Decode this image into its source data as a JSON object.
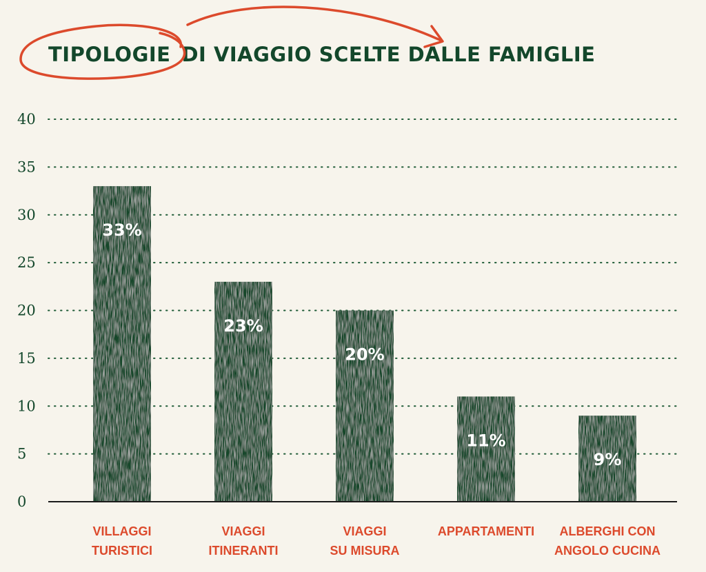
{
  "title": {
    "highlight": "TIPOLOGIE",
    "rest": "DI VIAGGIO SCELTE DALLE FAMIGLIE"
  },
  "colors": {
    "background": "#f7f4ec",
    "bar": "#13472b",
    "text": "#13472b",
    "accent": "#dc4a2c",
    "grid": "#1d5a35"
  },
  "chart_data": {
    "type": "bar",
    "title": "TIPOLOGIE DI VIAGGIO SCELTE DALLE FAMIGLIE",
    "categories": [
      [
        "VILLAGGI",
        "TURISTICI"
      ],
      [
        "VIAGGI",
        "ITINERANTI"
      ],
      [
        "VIAGGI",
        "SU MISURA"
      ],
      [
        "APPARTAMENTI"
      ],
      [
        "ALBERGHI CON",
        "ANGOLO CUCINA"
      ]
    ],
    "values": [
      33,
      23,
      20,
      11,
      9
    ],
    "data_labels": [
      "33%",
      "23%",
      "20%",
      "11%",
      "9%"
    ],
    "ylim": [
      0,
      40
    ],
    "yticks": [
      "0",
      "5",
      "10",
      "15",
      "20",
      "25",
      "30",
      "35",
      "40"
    ],
    "grid": true,
    "grid_style": "dotted",
    "legend": "none"
  }
}
